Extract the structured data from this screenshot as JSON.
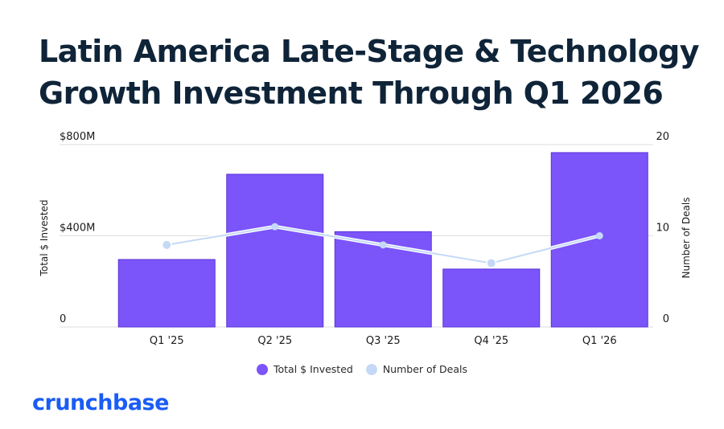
{
  "title_lines": [
    "Latin America Late-Stage & Technology",
    "Growth Investment Through Q1 2026"
  ],
  "logo": "crunchbase",
  "colors": {
    "bar": "#7b54fa",
    "bar_edge": "#5a35d6",
    "line": "#c5d9f6",
    "title": "#0f2438",
    "logo": "#1a5cf6",
    "grid": "#dedede"
  },
  "chart_data": {
    "type": "bar",
    "title": "Latin America Late-Stage & Technology Growth Investment Through Q1 2026",
    "categories": [
      "Q1 '25",
      "Q2 '25",
      "Q3 '25",
      "Q4 '25",
      "Q1 '26"
    ],
    "series": [
      {
        "name": "Total $ Invested",
        "type": "bar",
        "axis": "left",
        "unit": "USD millions",
        "values": [
          296,
          670,
          418,
          254,
          765
        ]
      },
      {
        "name": "Number of Deals",
        "type": "line",
        "axis": "right",
        "values": [
          9,
          11,
          9,
          7,
          10
        ]
      }
    ],
    "left_axis": {
      "label": "Total $ Invested",
      "ylim": [
        0,
        800
      ],
      "ticks": [
        0,
        400,
        800
      ],
      "tick_labels": [
        "0",
        "$400M",
        "$800M"
      ]
    },
    "right_axis": {
      "label": "Number of Deals",
      "ylim": [
        0,
        20
      ],
      "ticks": [
        0,
        10,
        20
      ],
      "tick_labels": [
        "0",
        "10",
        "20"
      ]
    },
    "grid": true,
    "legend": {
      "position": "bottom-center",
      "entries": [
        "Total $ Invested",
        "Number of Deals"
      ]
    }
  }
}
